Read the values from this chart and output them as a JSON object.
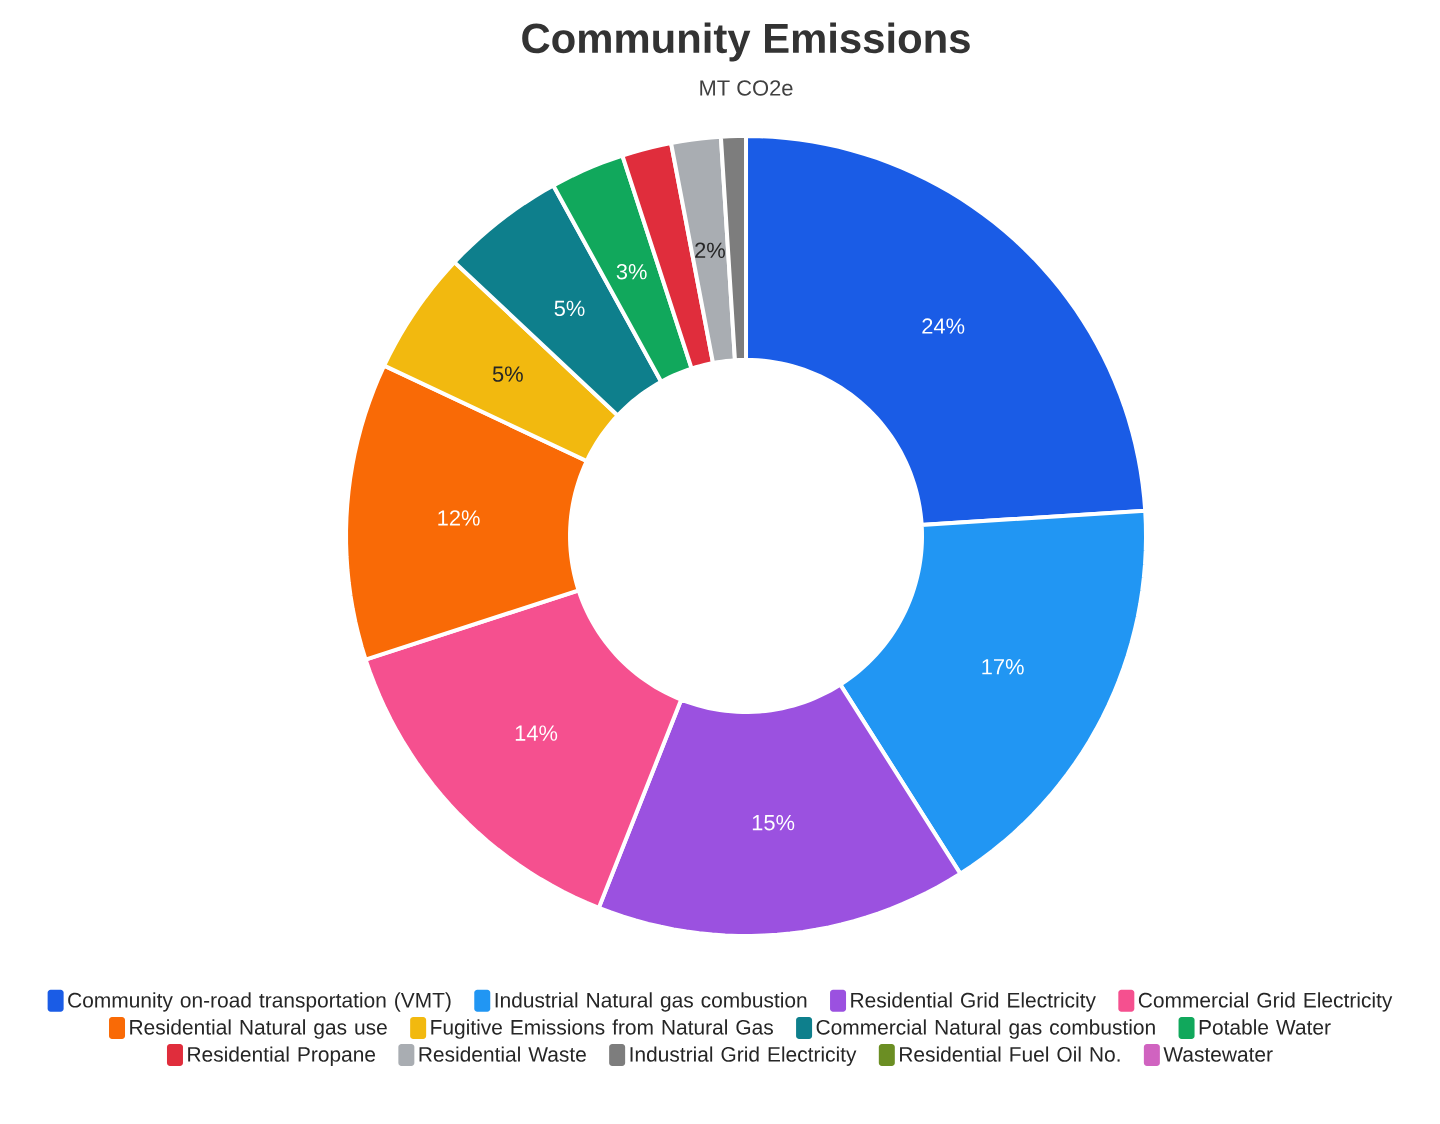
{
  "chart_data": {
    "type": "donut",
    "title": "Community Emissions",
    "subtitle": "MT CO2e",
    "categories": [
      "Community on-road transportation (VMT)",
      "Industrial Natural gas combustion",
      "Residential Grid Electricity",
      "Commercial Grid Electricity",
      "Residential Natural gas use",
      "Fugitive Emissions from Natural Gas",
      "Commercial Natural gas combustion",
      "Potable Water",
      "Residential Propane",
      "Residential Waste",
      "Industrial Grid Electricity",
      "Residential Fuel Oil No.",
      "Wastewater"
    ],
    "values": [
      24,
      17,
      15,
      14,
      12,
      5,
      5,
      3,
      2,
      2,
      1,
      0,
      0
    ],
    "value_labels": [
      "24%",
      "17%",
      "15%",
      "14%",
      "12%",
      "5%",
      "5%",
      "3%",
      null,
      "2%",
      null,
      null,
      null
    ],
    "colors": [
      "#1a5ce6",
      "#2196f3",
      "#9b51e0",
      "#f5508f",
      "#f96a06",
      "#f2b90f",
      "#0e7f8c",
      "#11a85c",
      "#e02d3c",
      "#a9adb2",
      "#7d7d7d",
      "#6b8e23",
      "#d063c0"
    ],
    "legend": "bottom"
  }
}
